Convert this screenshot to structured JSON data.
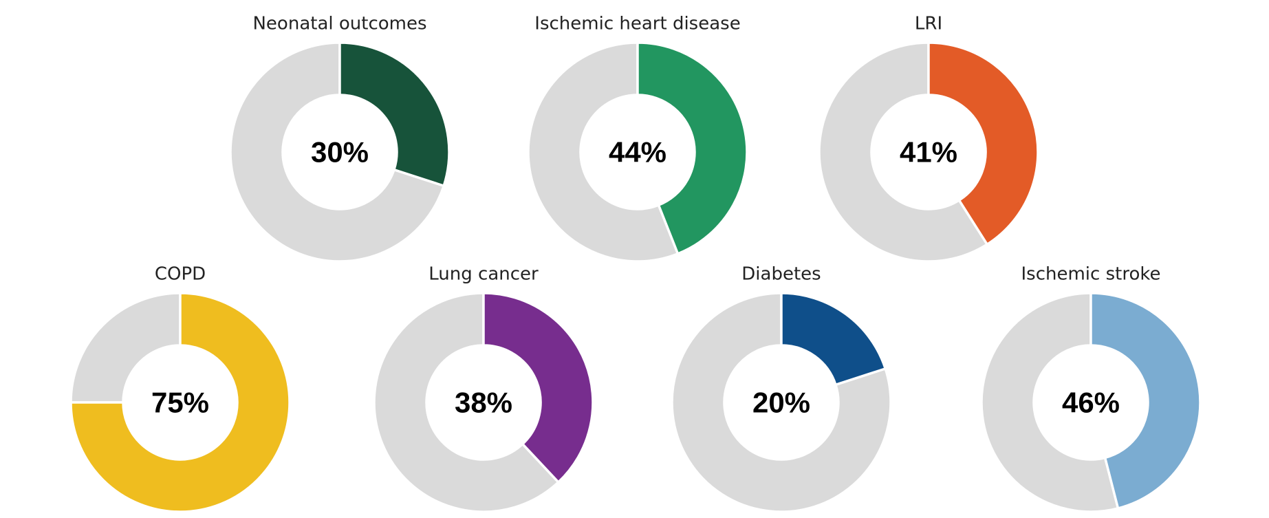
{
  "chart_data": [
    {
      "type": "donut",
      "title": "Neonatal outcomes",
      "values": [
        30
      ],
      "value_labels": [
        "30%"
      ],
      "color": "#17533a"
    },
    {
      "type": "donut",
      "title": "Ischemic heart disease",
      "values": [
        44
      ],
      "value_labels": [
        "44%"
      ],
      "color": "#229660"
    },
    {
      "type": "donut",
      "title": "LRI",
      "values": [
        41
      ],
      "value_labels": [
        "41%"
      ],
      "color": "#e35b27"
    },
    {
      "type": "donut",
      "title": "COPD",
      "values": [
        75
      ],
      "value_labels": [
        "75%"
      ],
      "color": "#efbd1f"
    },
    {
      "type": "donut",
      "title": "Lung cancer",
      "values": [
        38
      ],
      "value_labels": [
        "38%"
      ],
      "color": "#772d8e"
    },
    {
      "type": "donut",
      "title": "Diabetes",
      "values": [
        20
      ],
      "value_labels": [
        "20%"
      ],
      "color": "#0f4f8a"
    },
    {
      "type": "donut",
      "title": "Ischemic stroke",
      "values": [
        46
      ],
      "value_labels": [
        "46%"
      ],
      "color": "#7bacd1"
    }
  ]
}
